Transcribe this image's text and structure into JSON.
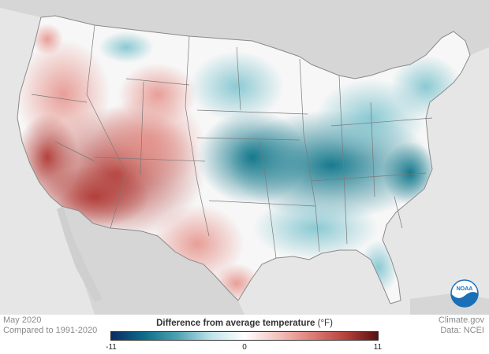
{
  "caption_left": {
    "line1": "May 2020",
    "line2": "Compared to 1991-2020"
  },
  "caption_right": {
    "line1": "Climate.gov",
    "line2": "Data: NCEI"
  },
  "legend": {
    "title": "Difference from average temperature",
    "unit": "(°F)",
    "min_label": "-11",
    "mid_label": "0",
    "max_label": "11",
    "min_value": -11,
    "max_value": 11,
    "colors": [
      "#0b2a63",
      "#0d6e8a",
      "#4fa3b3",
      "#bfe3ea",
      "#ffffff",
      "#f3c2bd",
      "#dc8078",
      "#b8433d",
      "#5a0f12"
    ]
  },
  "logo": {
    "text": "NOAA",
    "color": "#1a6fb7"
  },
  "map_colors": {
    "ocean_land_bg": "#e6e6e6",
    "neighbor_land": "#d4d4d4",
    "warm": "#d9736b",
    "warm_strong": "#b6423c",
    "cool": "#7cc3cf",
    "cool_strong": "#0f7f92",
    "state_lines": "#7a7a7a"
  }
}
